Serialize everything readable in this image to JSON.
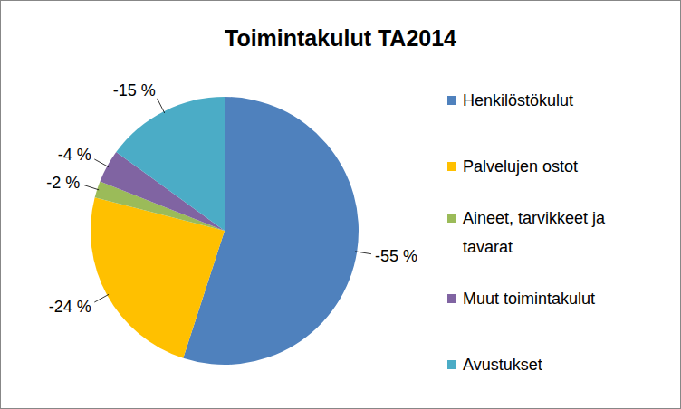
{
  "chart_data": {
    "type": "pie",
    "title": "Toimintakulut TA2014",
    "categories": [
      "Henkilöstökulut",
      "Palvelujen ostot",
      "Aineet, tarvikkeet ja tavarat",
      "Muut toimintakulut",
      "Avustukset"
    ],
    "values": [
      -55,
      -24,
      -2,
      -4,
      -15
    ],
    "value_labels": [
      "-55 %",
      "-24 %",
      "-2 %",
      "-4 %",
      "-15 %"
    ],
    "colors": [
      "#4f81bd",
      "#ffc000",
      "#9bbb59",
      "#8064a2",
      "#4bacc6"
    ],
    "data_labels": true,
    "legend": "right"
  }
}
